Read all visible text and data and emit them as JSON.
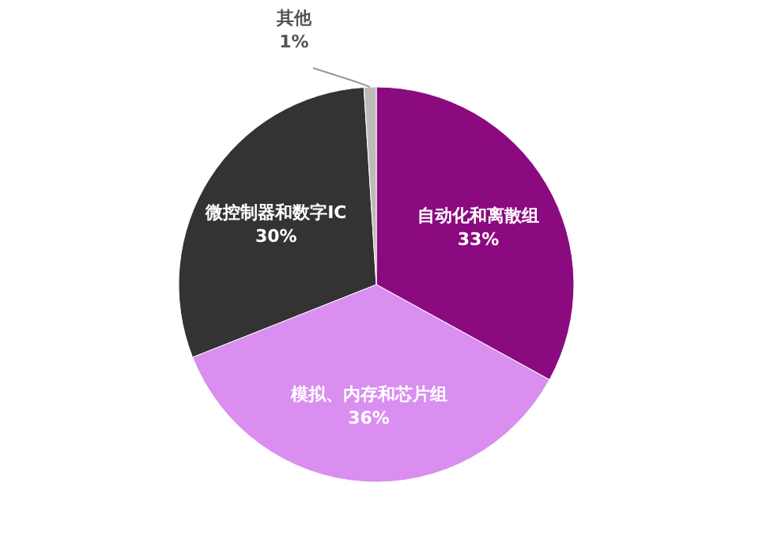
{
  "chart_data": {
    "type": "pie",
    "categories": [
      "自动化和离散组",
      "模拟、内存和芯片组",
      "微控制器和数字IC",
      "其他"
    ],
    "values": [
      33,
      36,
      30,
      1
    ],
    "colors": [
      "#8b0a80",
      "#d98ef0",
      "#333333",
      "#bbbbbb"
    ],
    "value_labels": [
      "33%",
      "36%",
      "30%",
      "1%"
    ]
  }
}
